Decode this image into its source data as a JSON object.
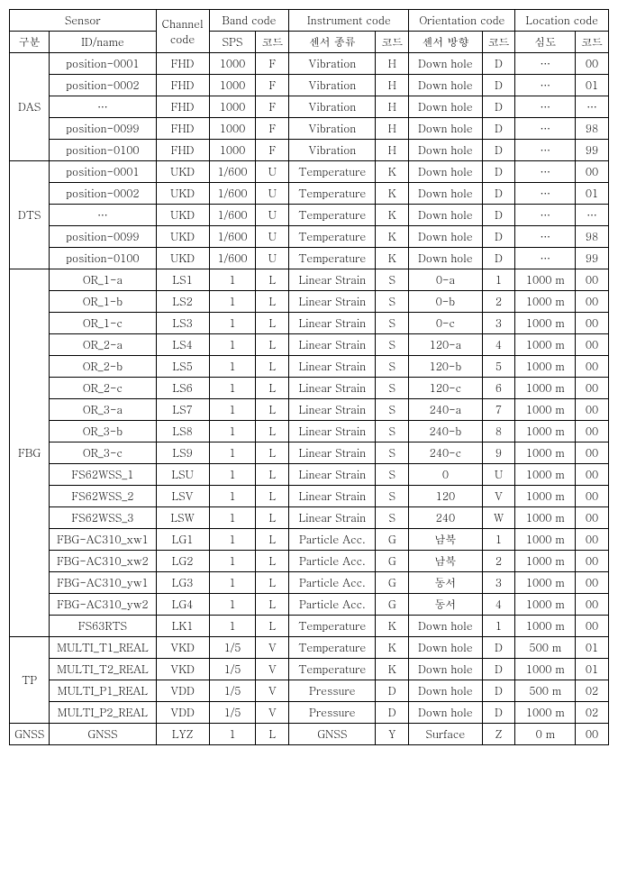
{
  "header": {
    "sensor": "Sensor",
    "channel_code": "Channel code",
    "band_code": "Band code",
    "instrument_code": "Instrument code",
    "orientation_code": "Orientation code",
    "location_code": "Location code",
    "gubun": "구분",
    "idname": "ID/name",
    "code": "code",
    "sps": "SPS",
    "kode": "코드",
    "sensor_type": "센서 종류",
    "sensor_dir": "센서 방향",
    "depth": "심도"
  },
  "groups": [
    {
      "name": "DAS",
      "rows": [
        {
          "id": "position-0001",
          "ch": "FHD",
          "sps": "1000",
          "bc": "F",
          "inst": "Vibration",
          "ic": "H",
          "orient": "Down hole",
          "oc": "D",
          "depth": "…",
          "lc": "00"
        },
        {
          "id": "position-0002",
          "ch": "FHD",
          "sps": "1000",
          "bc": "F",
          "inst": "Vibration",
          "ic": "H",
          "orient": "Down hole",
          "oc": "D",
          "depth": "…",
          "lc": "01"
        },
        {
          "id": "…",
          "ch": "FHD",
          "sps": "1000",
          "bc": "F",
          "inst": "Vibration",
          "ic": "H",
          "orient": "Down hole",
          "oc": "D",
          "depth": "…",
          "lc": "…"
        },
        {
          "id": "position-0099",
          "ch": "FHD",
          "sps": "1000",
          "bc": "F",
          "inst": "Vibration",
          "ic": "H",
          "orient": "Down hole",
          "oc": "D",
          "depth": "…",
          "lc": "98"
        },
        {
          "id": "position-0100",
          "ch": "FHD",
          "sps": "1000",
          "bc": "F",
          "inst": "Vibration",
          "ic": "H",
          "orient": "Down hole",
          "oc": "D",
          "depth": "…",
          "lc": "99"
        }
      ]
    },
    {
      "name": "DTS",
      "rows": [
        {
          "id": "position-0001",
          "ch": "UKD",
          "sps": "1/600",
          "bc": "U",
          "inst": "Temperature",
          "ic": "K",
          "orient": "Down hole",
          "oc": "D",
          "depth": "…",
          "lc": "00"
        },
        {
          "id": "position-0002",
          "ch": "UKD",
          "sps": "1/600",
          "bc": "U",
          "inst": "Temperature",
          "ic": "K",
          "orient": "Down hole",
          "oc": "D",
          "depth": "…",
          "lc": "01"
        },
        {
          "id": "…",
          "ch": "UKD",
          "sps": "1/600",
          "bc": "U",
          "inst": "Temperature",
          "ic": "K",
          "orient": "Down hole",
          "oc": "D",
          "depth": "…",
          "lc": "…"
        },
        {
          "id": "position-0099",
          "ch": "UKD",
          "sps": "1/600",
          "bc": "U",
          "inst": "Temperature",
          "ic": "K",
          "orient": "Down hole",
          "oc": "D",
          "depth": "…",
          "lc": "98"
        },
        {
          "id": "position-0100",
          "ch": "UKD",
          "sps": "1/600",
          "bc": "U",
          "inst": "Temperature",
          "ic": "K",
          "orient": "Down hole",
          "oc": "D",
          "depth": "…",
          "lc": "99"
        }
      ]
    },
    {
      "name": "FBG",
      "rows": [
        {
          "id": "OR_1-a",
          "ch": "LS1",
          "sps": "1",
          "bc": "L",
          "inst": "Linear Strain",
          "ic": "S",
          "orient": "0-a",
          "oc": "1",
          "depth": "1000 m",
          "lc": "00"
        },
        {
          "id": "OR_1-b",
          "ch": "LS2",
          "sps": "1",
          "bc": "L",
          "inst": "Linear Strain",
          "ic": "S",
          "orient": "0-b",
          "oc": "2",
          "depth": "1000 m",
          "lc": "00"
        },
        {
          "id": "OR_1-c",
          "ch": "LS3",
          "sps": "1",
          "bc": "L",
          "inst": "Linear Strain",
          "ic": "S",
          "orient": "0-c",
          "oc": "3",
          "depth": "1000 m",
          "lc": "00"
        },
        {
          "id": "OR_2-a",
          "ch": "LS4",
          "sps": "1",
          "bc": "L",
          "inst": "Linear Strain",
          "ic": "S",
          "orient": "120-a",
          "oc": "4",
          "depth": "1000 m",
          "lc": "00"
        },
        {
          "id": "OR_2-b",
          "ch": "LS5",
          "sps": "1",
          "bc": "L",
          "inst": "Linear Strain",
          "ic": "S",
          "orient": "120-b",
          "oc": "5",
          "depth": "1000 m",
          "lc": "00"
        },
        {
          "id": "OR_2-c",
          "ch": "LS6",
          "sps": "1",
          "bc": "L",
          "inst": "Linear Strain",
          "ic": "S",
          "orient": "120-c",
          "oc": "6",
          "depth": "1000 m",
          "lc": "00"
        },
        {
          "id": "OR_3-a",
          "ch": "LS7",
          "sps": "1",
          "bc": "L",
          "inst": "Linear Strain",
          "ic": "S",
          "orient": "240-a",
          "oc": "7",
          "depth": "1000 m",
          "lc": "00"
        },
        {
          "id": "OR_3-b",
          "ch": "LS8",
          "sps": "1",
          "bc": "L",
          "inst": "Linear Strain",
          "ic": "S",
          "orient": "240-b",
          "oc": "8",
          "depth": "1000 m",
          "lc": "00"
        },
        {
          "id": "OR_3-c",
          "ch": "LS9",
          "sps": "1",
          "bc": "L",
          "inst": "Linear Strain",
          "ic": "S",
          "orient": "240-c",
          "oc": "9",
          "depth": "1000 m",
          "lc": "00"
        },
        {
          "id": "FS62WSS_1",
          "ch": "LSU",
          "sps": "1",
          "bc": "L",
          "inst": "Linear Strain",
          "ic": "S",
          "orient": "0",
          "oc": "U",
          "depth": "1000 m",
          "lc": "00"
        },
        {
          "id": "FS62WSS_2",
          "ch": "LSV",
          "sps": "1",
          "bc": "L",
          "inst": "Linear Strain",
          "ic": "S",
          "orient": "120",
          "oc": "V",
          "depth": "1000 m",
          "lc": "00"
        },
        {
          "id": "FS62WSS_3",
          "ch": "LSW",
          "sps": "1",
          "bc": "L",
          "inst": "Linear Strain",
          "ic": "S",
          "orient": "240",
          "oc": "W",
          "depth": "1000 m",
          "lc": "00"
        },
        {
          "id": "FBG-AC310_xw1",
          "ch": "LG1",
          "sps": "1",
          "bc": "L",
          "inst": "Particle Acc.",
          "ic": "G",
          "orient": "남북",
          "oc": "1",
          "depth": "1000 m",
          "lc": "00"
        },
        {
          "id": "FBG-AC310_xw2",
          "ch": "LG2",
          "sps": "1",
          "bc": "L",
          "inst": "Particle Acc.",
          "ic": "G",
          "orient": "남북",
          "oc": "2",
          "depth": "1000 m",
          "lc": "00"
        },
        {
          "id": "FBG-AC310_yw1",
          "ch": "LG3",
          "sps": "1",
          "bc": "L",
          "inst": "Particle Acc.",
          "ic": "G",
          "orient": "동서",
          "oc": "3",
          "depth": "1000 m",
          "lc": "00"
        },
        {
          "id": "FBG-AC310_yw2",
          "ch": "LG4",
          "sps": "1",
          "bc": "L",
          "inst": "Particle Acc.",
          "ic": "G",
          "orient": "동서",
          "oc": "4",
          "depth": "1000 m",
          "lc": "00"
        },
        {
          "id": "FS63RTS",
          "ch": "LK1",
          "sps": "1",
          "bc": "L",
          "inst": "Temperature",
          "ic": "K",
          "orient": "Down hole",
          "oc": "1",
          "depth": "1000 m",
          "lc": "00"
        }
      ]
    },
    {
      "name": "TP",
      "rows": [
        {
          "id": "MULTI_T1_REAL",
          "ch": "VKD",
          "sps": "1/5",
          "bc": "V",
          "inst": "Temperature",
          "ic": "K",
          "orient": "Down hole",
          "oc": "D",
          "depth": "500 m",
          "lc": "01"
        },
        {
          "id": "MULTI_T2_REAL",
          "ch": "VKD",
          "sps": "1/5",
          "bc": "V",
          "inst": "Temperature",
          "ic": "K",
          "orient": "Down hole",
          "oc": "D",
          "depth": "1000 m",
          "lc": "01"
        },
        {
          "id": "MULTI_P1_REAL",
          "ch": "VDD",
          "sps": "1/5",
          "bc": "V",
          "inst": "Pressure",
          "ic": "D",
          "orient": "Down hole",
          "oc": "D",
          "depth": "500 m",
          "lc": "02"
        },
        {
          "id": "MULTI_P2_REAL",
          "ch": "VDD",
          "sps": "1/5",
          "bc": "V",
          "inst": "Pressure",
          "ic": "D",
          "orient": "Down hole",
          "oc": "D",
          "depth": "1000 m",
          "lc": "02"
        }
      ]
    },
    {
      "name": "GNSS",
      "rows": [
        {
          "id": "GNSS",
          "ch": "LYZ",
          "sps": "1",
          "bc": "L",
          "inst": "GNSS",
          "ic": "Y",
          "orient": "Surface",
          "oc": "Z",
          "depth": "0 m",
          "lc": "00"
        }
      ]
    }
  ]
}
